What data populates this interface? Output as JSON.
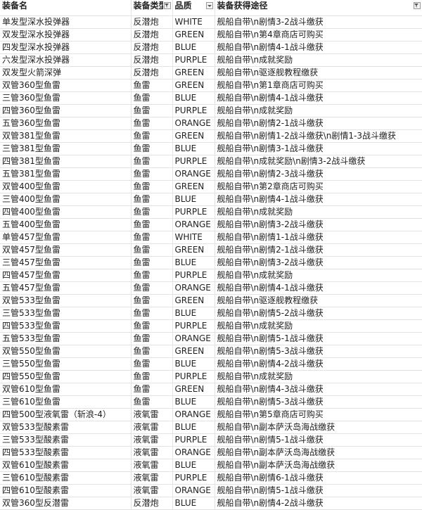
{
  "table": {
    "header": [
      "装备名",
      "装备类型",
      "品质",
      "装备获得途径"
    ],
    "rows": [
      [
        "单发型深水投弹器",
        "反潜炮",
        "WHITE",
        "舰船自带\\n剧情3-2战斗缴获"
      ],
      [
        "双发型深水投弹器",
        "反潜炮",
        "GREEN",
        "舰船自带\\n第4章商店可购买"
      ],
      [
        "四发型深水投弹器",
        "反潜炮",
        "BLUE",
        "舰船自带\\n剧情4-1战斗缴获"
      ],
      [
        "六发型深水投弹器",
        "反潜炮",
        "PURPLE",
        "舰船自带\\n成就奖励"
      ],
      [
        "双发型火箭深弹",
        "反潜炮",
        "GREEN",
        "舰船自带\\n驱逐舰教程缴获"
      ],
      [
        "双管360型鱼雷",
        "鱼雷",
        "GREEN",
        "舰船自带\\n第1章商店可购买"
      ],
      [
        "三管360型鱼雷",
        "鱼雷",
        "BLUE",
        "舰船自带\\n剧情4-1战斗缴获"
      ],
      [
        "四管360型鱼雷",
        "鱼雷",
        "PURPLE",
        "舰船自带\\n成就奖励"
      ],
      [
        "五管360型鱼雷",
        "鱼雷",
        "ORANGE",
        "舰船自带\\n剧情2-1战斗缴获"
      ],
      [
        "双管381型鱼雷",
        "鱼雷",
        "GREEN",
        "舰船自带\\n剧情1-2战斗缴获\\n剧情1-3战斗缴获"
      ],
      [
        "三管381型鱼雷",
        "鱼雷",
        "BLUE",
        "舰船自带\\n剧情3-1战斗缴获"
      ],
      [
        "四管381型鱼雷",
        "鱼雷",
        "PURPLE",
        "舰船自带\\n成就奖励\\n剧情3-2战斗缴获"
      ],
      [
        "五管381型鱼雷",
        "鱼雷",
        "ORANGE",
        "舰船自带\\n剧情2-3战斗缴获"
      ],
      [
        "双管400型鱼雷",
        "鱼雷",
        "GREEN",
        "舰船自带\\n第2章商店可购买"
      ],
      [
        "三管400型鱼雷",
        "鱼雷",
        "BLUE",
        "舰船自带\\n剧情4-1战斗缴获"
      ],
      [
        "四管400型鱼雷",
        "鱼雷",
        "PURPLE",
        "舰船自带\\n成就奖励"
      ],
      [
        "五管400型鱼雷",
        "鱼雷",
        "ORANGE",
        "舰船自带\\n剧情3-2战斗缴获"
      ],
      [
        "单管457型鱼雷",
        "鱼雷",
        "WHITE",
        "舰船自带\\n剧情1-1战斗缴获"
      ],
      [
        "双管457型鱼雷",
        "鱼雷",
        "GREEN",
        "舰船自带\\n剧情2-1战斗缴获"
      ],
      [
        "三管457型鱼雷",
        "鱼雷",
        "BLUE",
        "舰船自带\\n剧情3-2战斗缴获"
      ],
      [
        "四管457型鱼雷",
        "鱼雷",
        "PURPLE",
        "舰船自带\\n成就奖励"
      ],
      [
        "五管457型鱼雷",
        "鱼雷",
        "ORANGE",
        "舰船自带\\n剧情4-1战斗缴获"
      ],
      [
        "双管533型鱼雷",
        "鱼雷",
        "GREEN",
        "舰船自带\\n驱逐舰教程缴获"
      ],
      [
        "三管533型鱼雷",
        "鱼雷",
        "BLUE",
        "舰船自带\\n剧情5-2战斗缴获"
      ],
      [
        "四管533型鱼雷",
        "鱼雷",
        "PURPLE",
        "舰船自带\\n成就奖励"
      ],
      [
        "五管533型鱼雷",
        "鱼雷",
        "ORANGE",
        "舰船自带\\n剧情5-1战斗缴获"
      ],
      [
        "双管550型鱼雷",
        "鱼雷",
        "GREEN",
        "舰船自带\\n剧情5-3战斗缴获"
      ],
      [
        "三管550型鱼雷",
        "鱼雷",
        "BLUE",
        "舰船自带\\n剧情4-2战斗缴获"
      ],
      [
        "四管550型鱼雷",
        "鱼雷",
        "PURPLE",
        "舰船自带\\n成就奖励"
      ],
      [
        "双管610型鱼雷",
        "鱼雷",
        "GREEN",
        "舰船自带\\n剧情4-3战斗缴获"
      ],
      [
        "三管610型鱼雷",
        "鱼雷",
        "BLUE",
        "舰船自带\\n剧情5-3战斗缴获"
      ],
      [
        "四管500型液氧雷（斩浪-4）",
        "液氧雷",
        "ORANGE",
        "舰船自带\\n第5章商店可购买"
      ],
      [
        "双管533型酸素雷",
        "液氧雷",
        "BLUE",
        "舰船自带\\n副本萨沃岛海战缴获"
      ],
      [
        "三管533型酸素雷",
        "液氧雷",
        "PURPLE",
        "舰船自带\\n剧情5-1战斗缴获"
      ],
      [
        "四管533型酸素雷",
        "液氧雷",
        "ORANGE",
        "舰船自带\\n副本萨沃岛海战缴获"
      ],
      [
        "双管610型酸素雷",
        "液氧雷",
        "BLUE",
        "舰船自带\\n副本萨沃岛海战缴获"
      ],
      [
        "三管610型酸素雷",
        "液氧雷",
        "PURPLE",
        "舰船自带\\n剧情6-1战斗缴获"
      ],
      [
        "四管610型酸素雷",
        "液氧雷",
        "ORANGE",
        "舰船自带\\n剧情5-1战斗缴获"
      ],
      [
        "双管360型反潜雷",
        "反潜炮",
        "BLUE",
        "舰船自带\\n剧情4-2战斗缴获"
      ]
    ]
  }
}
